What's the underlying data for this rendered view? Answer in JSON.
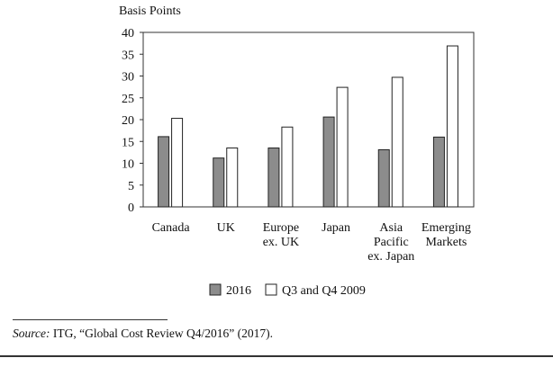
{
  "chart_data": {
    "type": "bar",
    "ylabel": "Basis Points",
    "ylim": [
      0,
      40
    ],
    "yticks": [
      0,
      5,
      10,
      15,
      20,
      25,
      30,
      35,
      40
    ],
    "categories": [
      [
        "Canada"
      ],
      [
        "UK"
      ],
      [
        "Europe",
        "ex. UK"
      ],
      [
        "Japan"
      ],
      [
        "Asia",
        "Pacific",
        "ex. Japan"
      ],
      [
        "Emerging",
        "Markets"
      ]
    ],
    "series": [
      {
        "name": "2016",
        "color": "#8c8c8c",
        "values": [
          16.1,
          11.2,
          13.5,
          20.6,
          13.1,
          16.0
        ]
      },
      {
        "name": "Q3 and Q4 2009",
        "color": "#ffffff",
        "values": [
          20.3,
          13.5,
          18.3,
          27.4,
          29.7,
          36.9
        ]
      }
    ],
    "legend": "bottom",
    "grid": false
  },
  "source": {
    "label": "Source:",
    "text": " ITG, “Global Cost Review Q4/2016” (2017)."
  }
}
